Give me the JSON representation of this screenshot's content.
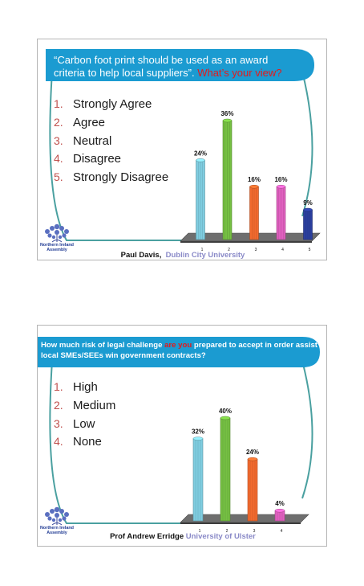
{
  "slides": [
    {
      "question_main": "“Carbon foot print should be used as an award criteria to help local suppliers”.",
      "question_highlight": "What’s your view?",
      "options": [
        {
          "num": "1.",
          "text": "Strongly Agree"
        },
        {
          "num": "2.",
          "text": "Agree"
        },
        {
          "num": "3.",
          "text": "Neutral"
        },
        {
          "num": "4.",
          "text": "Disagree"
        },
        {
          "num": "5.",
          "text": "Strongly Disagree"
        }
      ],
      "logo_line1": "Northern Ireland",
      "logo_line2": "Assembly",
      "presenter": "Paul Davis,",
      "affiliation": "Dublin City University"
    },
    {
      "question_part1": "How much risk of legal challenge ",
      "question_highlight": "are you",
      "question_part2": " prepared to accept in order assist local SMEs/SEEs win government contracts?",
      "options": [
        {
          "num": "1.",
          "text": "High"
        },
        {
          "num": "2.",
          "text": "Medium"
        },
        {
          "num": "3.",
          "text": "Low"
        },
        {
          "num": "4.",
          "text": "None"
        }
      ],
      "logo_line1": "Northern Ireland",
      "logo_line2": "Assembly",
      "presenter": "Prof Andrew Erridge",
      "affiliation": "University of Ulster"
    }
  ],
  "chart_data": [
    {
      "type": "bar",
      "categories": [
        "1",
        "2",
        "3",
        "4",
        "5"
      ],
      "values": [
        24,
        36,
        16,
        16,
        9
      ],
      "data_labels": [
        "24%",
        "36%",
        "16%",
        "16%",
        "9%"
      ],
      "ylim": [
        0,
        36
      ],
      "colors": [
        "#7fcde0",
        "#76c043",
        "#f26a2e",
        "#e060c0",
        "#2b3f9e"
      ],
      "grid": false
    },
    {
      "type": "bar",
      "categories": [
        "1",
        "2",
        "3",
        "4"
      ],
      "values": [
        32,
        40,
        24,
        4
      ],
      "data_labels": [
        "32%",
        "40%",
        "24%",
        "4%"
      ],
      "ylim": [
        0,
        40
      ],
      "colors": [
        "#7fcde0",
        "#76c043",
        "#f26a2e",
        "#e060c0"
      ],
      "grid": false
    }
  ],
  "colors": {
    "banner": "#1b9bd1",
    "teal_line": "#4aa0a0",
    "highlight": "#e31a1c",
    "affiliation": "#8a8ac8"
  }
}
